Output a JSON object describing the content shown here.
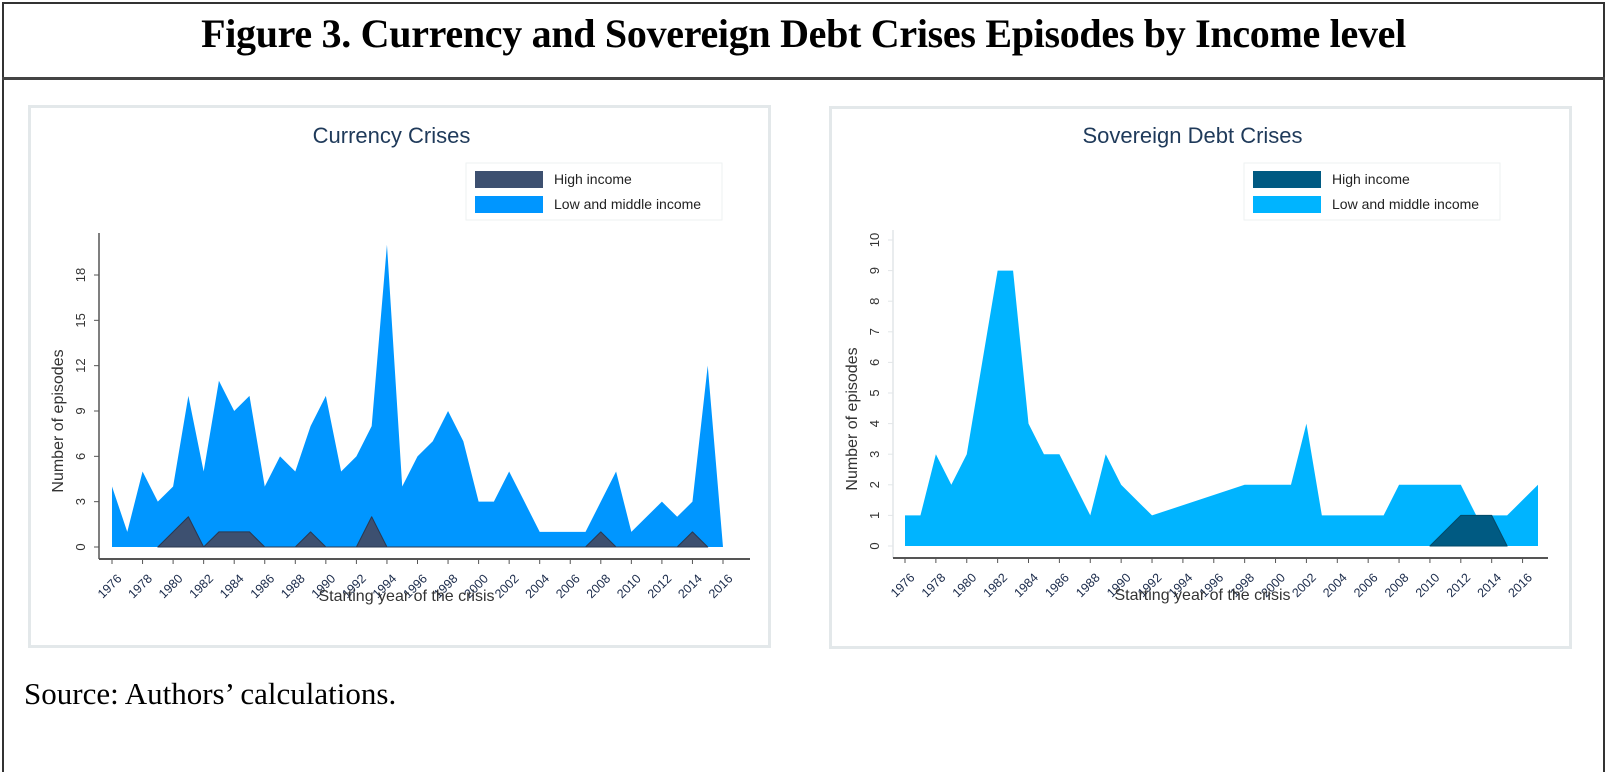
{
  "figure": {
    "title": "Figure 3. Currency and Sovereign Debt Crises Episodes by Income level",
    "source": "Source: Authors’ calculations."
  },
  "chart_data": [
    {
      "type": "area",
      "title": "Currency Crises",
      "xlabel": "Starting year of the crisis",
      "ylabel": "Number of episodes",
      "xlim": [
        1976,
        2016
      ],
      "ylim": [
        0,
        20
      ],
      "yticks": [
        0,
        3,
        6,
        9,
        12,
        15,
        18
      ],
      "xticks": [
        1976,
        1978,
        1980,
        1982,
        1984,
        1986,
        1988,
        1990,
        1992,
        1994,
        1996,
        1998,
        2000,
        2002,
        2004,
        2006,
        2008,
        2010,
        2012,
        2014,
        2016
      ],
      "grid": false,
      "legend_position": "top-right",
      "series": [
        {
          "name": "Low and middle income",
          "color": "#0096ff",
          "x": [
            1976,
            1977,
            1978,
            1979,
            1980,
            1981,
            1982,
            1983,
            1984,
            1985,
            1986,
            1987,
            1988,
            1989,
            1990,
            1991,
            1992,
            1993,
            1994,
            1995,
            1996,
            1997,
            1998,
            1999,
            2000,
            2001,
            2002,
            2003,
            2004,
            2005,
            2006,
            2007,
            2008,
            2009,
            2010,
            2011,
            2012,
            2013,
            2014,
            2015,
            2016
          ],
          "values": [
            4,
            1,
            5,
            3,
            4,
            10,
            5,
            11,
            9,
            10,
            4,
            6,
            5,
            8,
            10,
            5,
            6,
            8,
            20,
            4,
            6,
            7,
            9,
            7,
            3,
            3,
            5,
            3,
            1,
            1,
            1,
            1,
            3,
            5,
            1,
            2,
            3,
            2,
            3,
            12,
            0
          ]
        },
        {
          "name": "High income",
          "color": "#3d5070",
          "x": [
            1979,
            1980,
            1981,
            1982,
            1983,
            1984,
            1985,
            1986,
            1988,
            1989,
            1990,
            1992,
            1993,
            1994,
            2007,
            2008,
            2009,
            2013,
            2014,
            2015
          ],
          "values": [
            0,
            1,
            2,
            0,
            1,
            1,
            1,
            0,
            0,
            1,
            0,
            0,
            2,
            0,
            0,
            1,
            0,
            0,
            1,
            0
          ]
        }
      ]
    },
    {
      "type": "area",
      "title": "Sovereign Debt Crises",
      "xlabel": "Starting year of the crisis",
      "ylabel": "Number of episodes",
      "xlim": [
        1976,
        2017
      ],
      "ylim": [
        0,
        10
      ],
      "yticks": [
        0,
        1,
        2,
        3,
        4,
        5,
        6,
        7,
        8,
        9,
        10
      ],
      "xticks": [
        1976,
        1978,
        1980,
        1982,
        1984,
        1986,
        1988,
        1990,
        1992,
        1994,
        1996,
        1998,
        2000,
        2002,
        2004,
        2006,
        2008,
        2010,
        2012,
        2014,
        2016
      ],
      "grid": false,
      "legend_position": "top-right",
      "series": [
        {
          "name": "Low and middle income",
          "color": "#00b4ff",
          "x": [
            1976,
            1977,
            1978,
            1979,
            1980,
            1981,
            1982,
            1983,
            1984,
            1985,
            1986,
            1987,
            1988,
            1989,
            1990,
            1992,
            1998,
            2001,
            2002,
            2003,
            2007,
            2008,
            2012,
            2013,
            2014,
            2015,
            2017
          ],
          "values": [
            1,
            1,
            3,
            2,
            3,
            6,
            9,
            9,
            4,
            3,
            3,
            2,
            1,
            3,
            2,
            1,
            2,
            2,
            4,
            1,
            1,
            2,
            2,
            1,
            1,
            1,
            2
          ]
        },
        {
          "name": "High income",
          "color": "#005a82",
          "x": [
            2010,
            2012,
            2013,
            2014,
            2015
          ],
          "values": [
            0,
            1,
            1,
            1,
            0
          ]
        }
      ]
    }
  ]
}
